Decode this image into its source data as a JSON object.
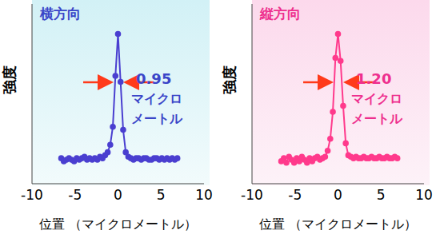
{
  "chart_data": [
    {
      "type": "line",
      "title": "横方向",
      "xlabel": "位置 （マイクロメートル）",
      "ylabel": "強度",
      "x": [
        -6.6,
        -6.3,
        -6.0,
        -5.7,
        -5.4,
        -5.1,
        -4.8,
        -4.5,
        -4.2,
        -3.9,
        -3.6,
        -3.3,
        -3.0,
        -2.7,
        -2.4,
        -2.1,
        -1.8,
        -1.5,
        -1.2,
        -0.9,
        -0.6,
        -0.3,
        0,
        0.3,
        0.6,
        0.9,
        1.2,
        1.5,
        1.8,
        2.1,
        2.4,
        2.7,
        3.0,
        3.3,
        3.6,
        3.9,
        4.2,
        4.5,
        4.8,
        5.1,
        5.4,
        5.7,
        6.0,
        6.3,
        6.6,
        6.9
      ],
      "values": [
        0.17,
        0.15,
        0.16,
        0.17,
        0.16,
        0.15,
        0.17,
        0.16,
        0.17,
        0.18,
        0.16,
        0.17,
        0.16,
        0.17,
        0.16,
        0.18,
        0.17,
        0.19,
        0.21,
        0.26,
        0.38,
        0.72,
        1.0,
        0.68,
        0.36,
        0.21,
        0.18,
        0.17,
        0.16,
        0.17,
        0.17,
        0.16,
        0.17,
        0.17,
        0.16,
        0.16,
        0.17,
        0.17,
        0.16,
        0.17,
        0.16,
        0.17,
        0.16,
        0.17,
        0.16,
        0.17
      ],
      "color": "#4a3fd0",
      "marker": "circle",
      "xlim": [
        -10,
        10
      ],
      "xticks": [
        -10,
        -5,
        0,
        5,
        10
      ],
      "ylim": [
        0,
        1.2
      ],
      "tick_labels": "x",
      "annotation": [
        "0.95",
        "マイクロ",
        "メートル"
      ]
    },
    {
      "type": "line",
      "title": "縦方向",
      "xlabel": "位置 （マイクロメートル）",
      "ylabel": "強度",
      "x": [
        -6.6,
        -6.3,
        -6.0,
        -5.7,
        -5.4,
        -5.1,
        -4.8,
        -4.5,
        -4.2,
        -3.9,
        -3.6,
        -3.3,
        -3.0,
        -2.7,
        -2.4,
        -2.1,
        -1.8,
        -1.5,
        -1.2,
        -0.9,
        -0.6,
        -0.3,
        0,
        0.3,
        0.6,
        0.9,
        1.2,
        1.5,
        1.8,
        2.1,
        2.4,
        2.7,
        3.0,
        3.3,
        3.6,
        3.9,
        4.2,
        4.5,
        4.8,
        5.1,
        5.4,
        5.7,
        6.0,
        6.3,
        6.6,
        6.9
      ],
      "values": [
        0.15,
        0.17,
        0.14,
        0.18,
        0.16,
        0.14,
        0.17,
        0.15,
        0.18,
        0.16,
        0.14,
        0.17,
        0.15,
        0.17,
        0.18,
        0.16,
        0.17,
        0.18,
        0.22,
        0.3,
        0.48,
        0.84,
        1.0,
        0.82,
        0.52,
        0.27,
        0.19,
        0.18,
        0.17,
        0.18,
        0.17,
        0.17,
        0.18,
        0.17,
        0.17,
        0.18,
        0.17,
        0.17,
        0.18,
        0.17,
        0.17,
        0.18,
        0.17,
        0.17,
        0.18,
        0.17
      ],
      "color": "#ff3a8c",
      "marker": "circle",
      "xlim": [
        -10,
        10
      ],
      "xticks": [
        -10,
        -5,
        0,
        5,
        10
      ],
      "ylim": [
        0,
        1.2
      ],
      "tick_labels": "x",
      "annotation": [
        "1.20",
        "マイクロ",
        "メートル"
      ]
    }
  ]
}
